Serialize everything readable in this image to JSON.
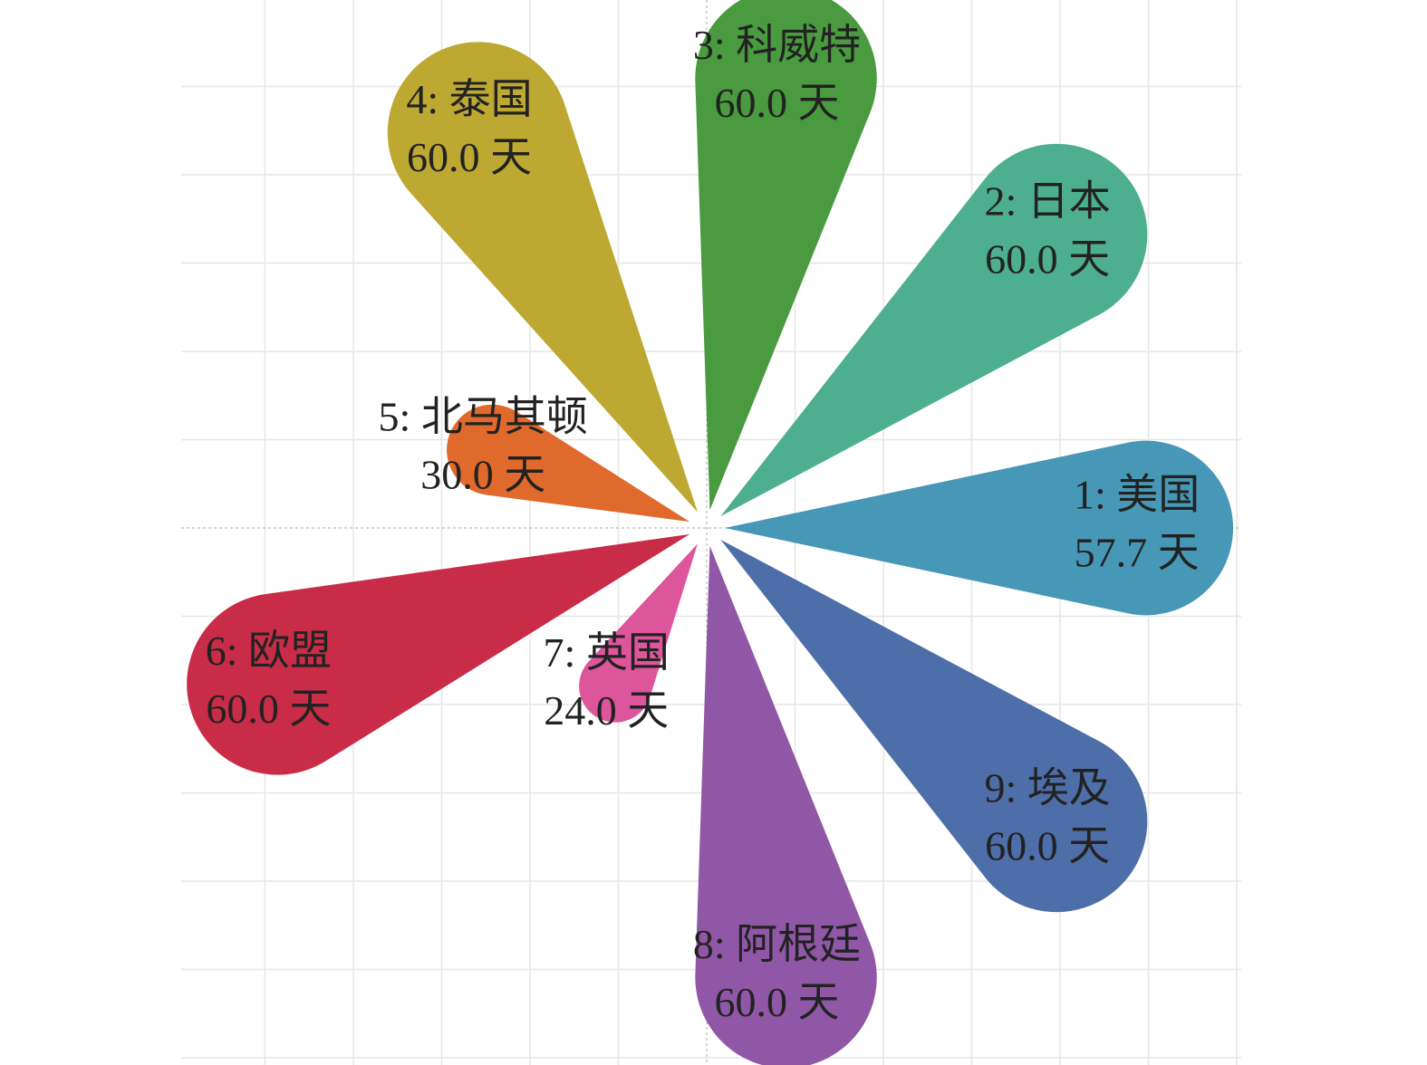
{
  "chart_data": {
    "type": "petal",
    "categories": [
      "1: 美国",
      "2: 日本",
      "3: 科威特",
      "4: 泰国",
      "5: 北马其顿",
      "6: 欧盟",
      "7: 英国",
      "8: 阿根廷",
      "9: 埃及"
    ],
    "values": [
      57.7,
      60.0,
      60.0,
      60.0,
      30.0,
      60.0,
      24.0,
      60.0,
      60.0
    ],
    "value_labels": [
      "57.7 天",
      "60.0 天",
      "60.0 天",
      "60.0 天",
      "30.0 天",
      "60.0 天",
      "24.0 天",
      "60.0 天",
      "60.0 天"
    ],
    "colors": [
      "#4797b6",
      "#4daf8f",
      "#4a9a3f",
      "#bda831",
      "#e06a2b",
      "#c92c47",
      "#dd559a",
      "#9157a7",
      "#4e6ea9"
    ],
    "grid": true
  }
}
